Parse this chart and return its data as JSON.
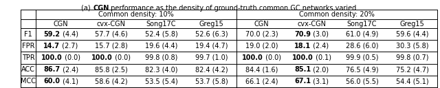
{
  "title_pre": "(a) ",
  "title_bold": "CGN",
  "title_post": " performance as the density of ground-truth common GC networks varied.",
  "col_groups": [
    "Common density: 10%",
    "Common density: 20%"
  ],
  "col_headers": [
    "CGN",
    "cvx-CGN",
    "Song17C",
    "Greg15",
    "CGN",
    "cvx-CGN",
    "Song17C",
    "Greg15"
  ],
  "row_headers": [
    "F1",
    "FPR",
    "TPR",
    "ACC",
    "MCC"
  ],
  "cells": [
    [
      "59.2 (4.4)",
      "57.7 (4.6)",
      "52.4 (5.8)",
      "52.6 (6.3)",
      "70.0 (2.3)",
      "70.9 (3.0)",
      "61.0 (4.9)",
      "59.6 (4.4)"
    ],
    [
      "14.7 (2.7)",
      "15.7 (2.8)",
      "19.6 (4.4)",
      "19.4 (4.7)",
      "19.0 (2.0)",
      "18.1 (2.4)",
      "28.6 (6.0)",
      "30.3 (5.8)"
    ],
    [
      "100.0 (0.0)",
      "100.0 (0.0)",
      "99.8 (0.8)",
      "99.7 (1.0)",
      "100.0 (0.0)",
      "100.0 (0.1)",
      "99.9 (0.5)",
      "99.8 (0.7)"
    ],
    [
      "86.7 (2.4)",
      "85.8 (2.5)",
      "82.3 (4.0)",
      "82.4 (4.2)",
      "84.4 (1.6)",
      "85.1 (2.0)",
      "76.5 (4.9)",
      "75.2 (4.7)"
    ],
    [
      "60.0 (4.1)",
      "58.6 (4.2)",
      "53.5 (5.4)",
      "53.7 (5.8)",
      "66.1 (2.4)",
      "67.1 (3.1)",
      "56.0 (5.5)",
      "54.4 (5.1)"
    ]
  ],
  "bold_cells": [
    [
      [
        0,
        0
      ],
      [
        0,
        5
      ]
    ],
    [
      [
        1,
        0
      ],
      [
        1,
        5
      ]
    ],
    [
      [
        2,
        0
      ],
      [
        2,
        1
      ],
      [
        2,
        4
      ],
      [
        2,
        5
      ]
    ],
    [
      [
        3,
        0
      ],
      [
        3,
        5
      ]
    ],
    [
      [
        4,
        0
      ],
      [
        4,
        5
      ]
    ]
  ],
  "bg_color": "#ffffff",
  "font_size": 7.0,
  "title_font_size": 7.0
}
